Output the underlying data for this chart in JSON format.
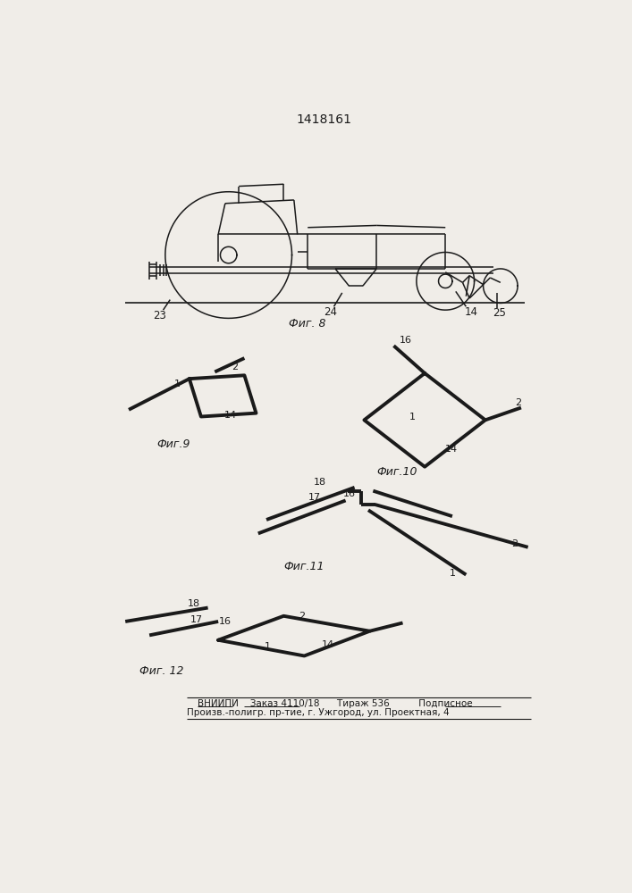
{
  "bg_color": "#f0ede8",
  "lc": "#1a1a1a",
  "title": "1418161",
  "footer1": "ВНИИПИ    Заказ 4110/18      Тираж 536          Подписное",
  "footer2": "Произв.-полигр. пр-тие, г. Ужгород, ул. Проектная, 4",
  "fig8_caption": "Фиг. 8",
  "fig9_caption": "Фиг.9",
  "fig10_caption": "Фиг.10",
  "fig11_caption": "Фиг.11",
  "fig12_caption": "Фиг. 12",
  "lw_thick": 2.8,
  "lw_thin": 1.1,
  "lw_medium": 1.6
}
